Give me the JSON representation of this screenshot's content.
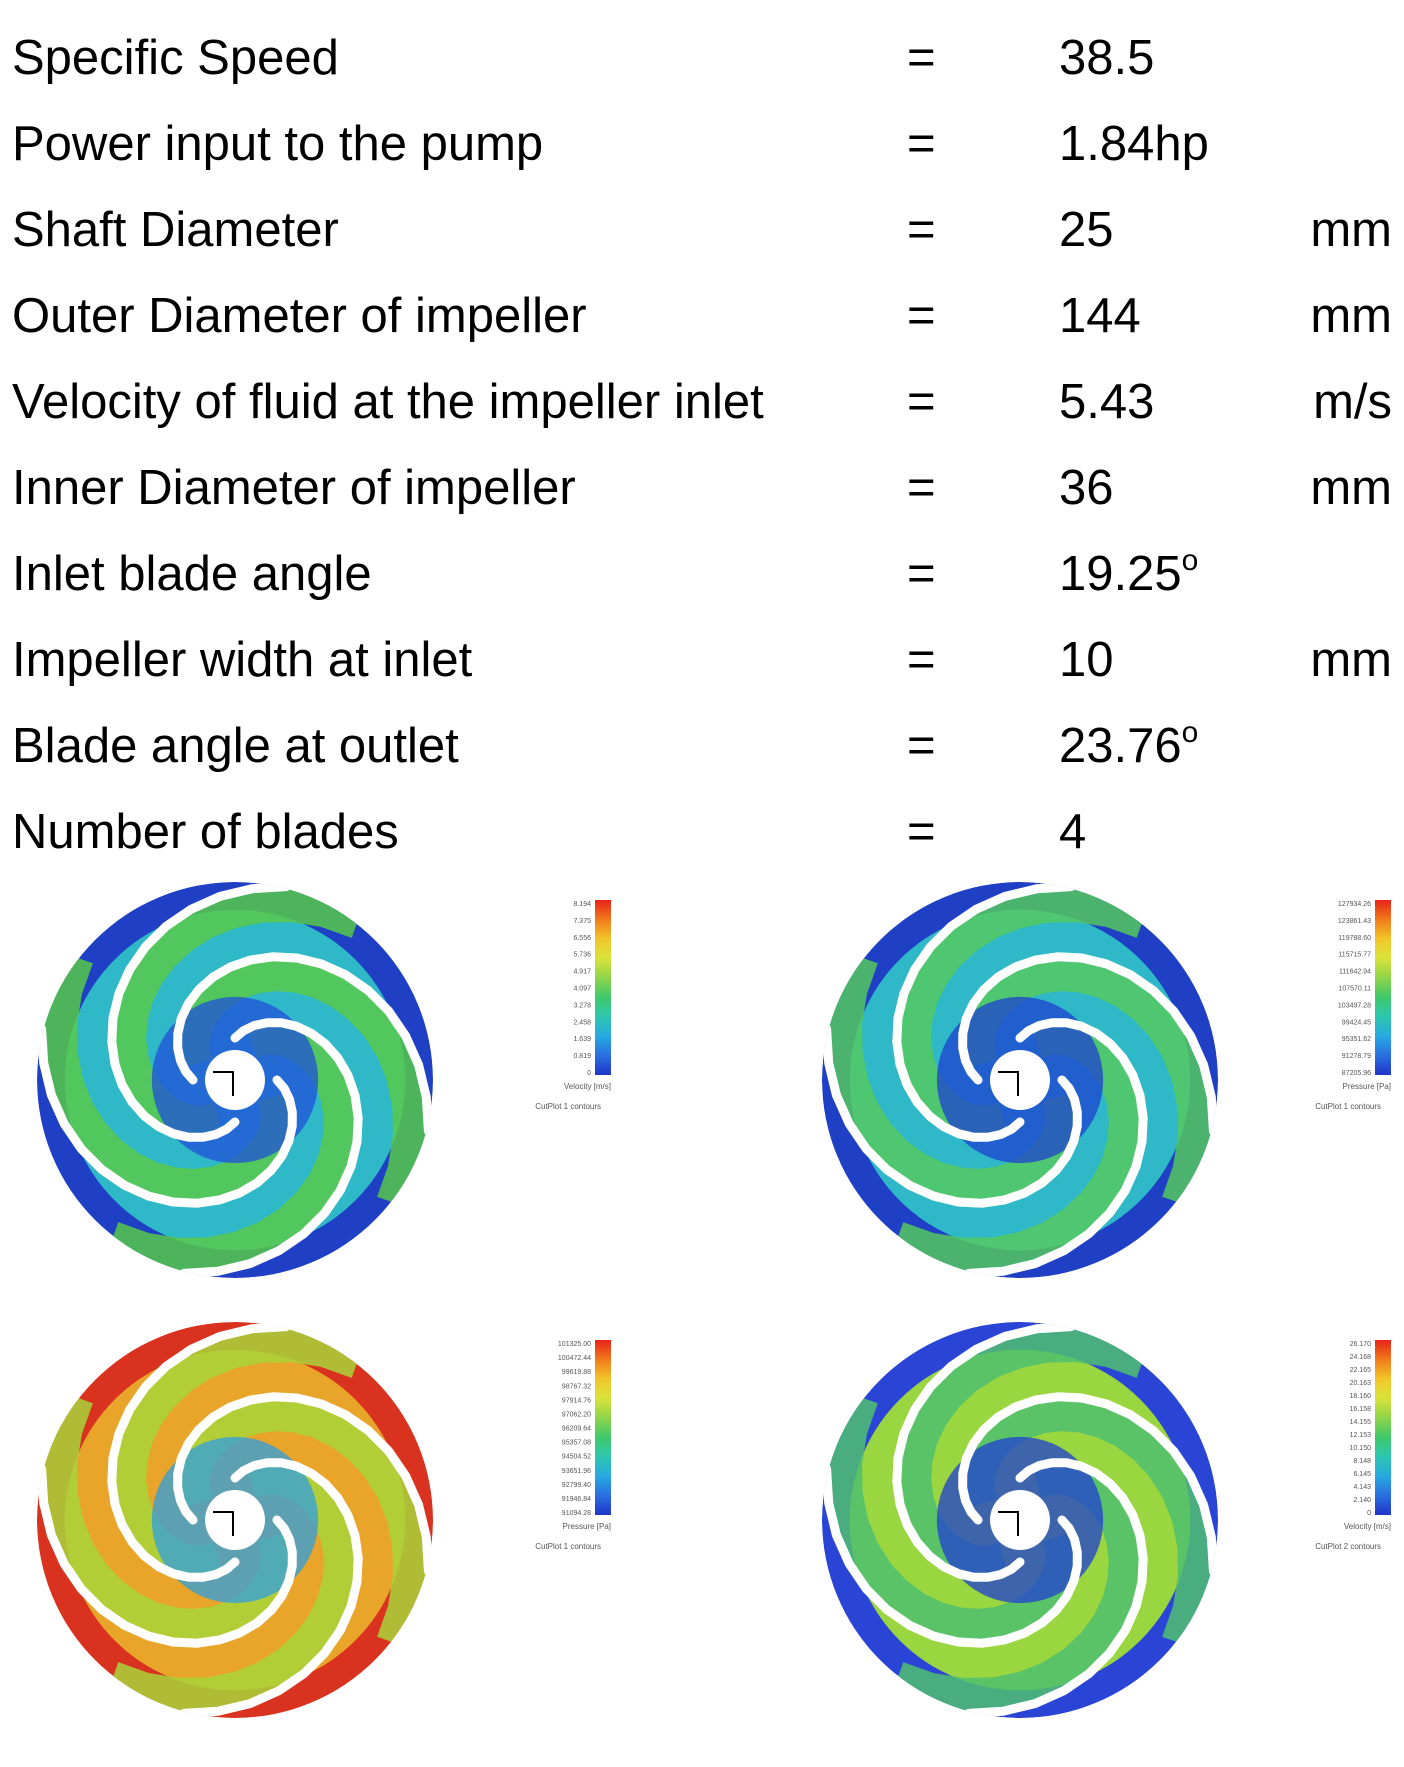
{
  "specs": [
    {
      "label": "Specific Speed",
      "eq": "=",
      "value": "38.5",
      "sup": "",
      "unit": ""
    },
    {
      "label": "Power input to the pump",
      "eq": "=",
      "value": "1.84hp",
      "sup": "",
      "unit": ""
    },
    {
      "label": "Shaft Diameter",
      "eq": "=",
      "value": "25",
      "sup": "",
      "unit": "mm"
    },
    {
      "label": "Outer Diameter of impeller",
      "eq": "=",
      "value": "144",
      "sup": "",
      "unit": "mm"
    },
    {
      "label": "Velocity of fluid at the impeller inlet",
      "eq": "=",
      "value": "5.43",
      "sup": "",
      "unit": "m/s"
    },
    {
      "label": "Inner Diameter of impeller",
      "eq": "=",
      "value": "36",
      "sup": "",
      "unit": "mm"
    },
    {
      "label": "Inlet blade angle",
      "eq": "=",
      "value": "19.25",
      "sup": "o",
      "unit": ""
    },
    {
      "label": "Impeller width at inlet",
      "eq": "=",
      "value": "10",
      "sup": "",
      "unit": "mm"
    },
    {
      "label": "Blade angle at outlet",
      "eq": "=",
      "value": "23.76",
      "sup": "o",
      "unit": ""
    },
    {
      "label": "Number of blades",
      "eq": "=",
      "value": "4",
      "sup": "",
      "unit": ""
    }
  ],
  "plots": [
    {
      "colorbar_label": "Velocity [m/s]",
      "plot_name": "CutPlot 1 contours",
      "ticks": [
        "8.194",
        "7.375",
        "6.556",
        "5.736",
        "4.917",
        "4.097",
        "3.278",
        "2.458",
        "1.639",
        "0.819",
        "0"
      ],
      "colors": {
        "outer": "#1f3fc4",
        "body": "#2fb8c8",
        "mid": "#57c94a",
        "inner": "#2050d8"
      }
    },
    {
      "colorbar_label": "Pressure [Pa]",
      "plot_name": "CutPlot 1 contours",
      "ticks": [
        "127934.26",
        "123861.43",
        "119788.60",
        "115715.77",
        "111642.94",
        "107570.11",
        "103497.28",
        "99424.45",
        "95351.62",
        "91278.79",
        "87205.96"
      ],
      "colors": {
        "outer": "#1f3fc4",
        "body": "#2fb8c8",
        "mid": "#55c860",
        "inner": "#1e40d0"
      }
    },
    {
      "colorbar_label": "Pressure [Pa]",
      "plot_name": "CutPlot 1 contours",
      "ticks": [
        "101325.00",
        "100472.44",
        "99619.88",
        "98767.32",
        "97914.76",
        "97062.20",
        "96209.64",
        "95357.08",
        "94504.52",
        "93651.96",
        "92799.40",
        "91946.84",
        "91094.28"
      ],
      "colors": {
        "outer": "#d9321f",
        "body": "#e8a52a",
        "mid": "#a8d53a",
        "inner": "#2f9fe0"
      }
    },
    {
      "colorbar_label": "Velocity [m/s]",
      "plot_name": "CutPlot 2 contours",
      "ticks": [
        "26.170",
        "24.168",
        "22.165",
        "20.163",
        "18.160",
        "16.158",
        "14.155",
        "12.153",
        "10.150",
        "8.148",
        "6.145",
        "4.143",
        "2.140",
        "0"
      ],
      "colors": {
        "outer": "#2a45d6",
        "body": "#9ad640",
        "mid": "#4fc070",
        "inner": "#1f3fd0"
      }
    }
  ]
}
